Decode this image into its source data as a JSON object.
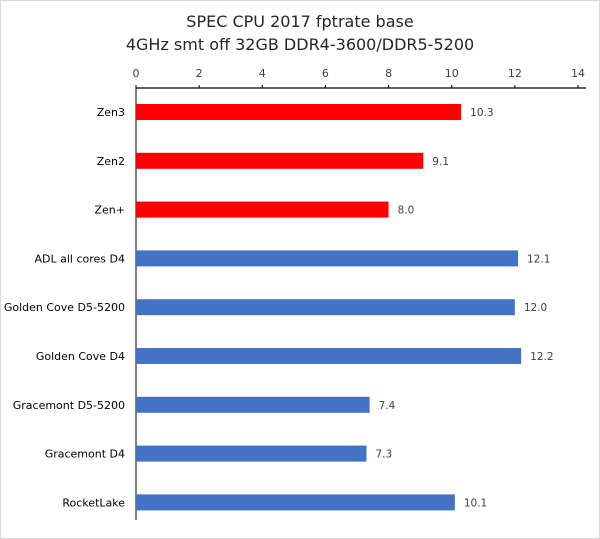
{
  "chart_data": {
    "type": "bar",
    "orientation": "horizontal",
    "title": "SPEC CPU 2017 fptrate base",
    "subtitle": "4GHz smt off 32GB DDR4-3600/DDR5-5200",
    "xlim": [
      0,
      14
    ],
    "x_ticks": [
      0,
      2,
      4,
      6,
      8,
      10,
      12,
      14
    ],
    "x_axis_position": "top",
    "grid": false,
    "legend": "none",
    "categories": [
      "Zen3",
      "Zen2",
      "Zen+",
      "ADL all cores D4",
      "Golden Cove D5-5200",
      "Golden Cove D4",
      "Gracemont D5-5200",
      "Gracemont D4",
      "RocketLake"
    ],
    "values": [
      10.3,
      9.1,
      8.0,
      12.1,
      12.0,
      12.2,
      7.4,
      7.3,
      10.1
    ],
    "value_labels": [
      "10.3",
      "9.1",
      "8.0",
      "12.1",
      "12.0",
      "12.2",
      "7.4",
      "7.3",
      "10.1"
    ],
    "bar_colors": [
      "#ff0000",
      "#ff0000",
      "#ff0000",
      "#4472c4",
      "#4472c4",
      "#4472c4",
      "#4472c4",
      "#4472c4",
      "#4472c4"
    ]
  }
}
